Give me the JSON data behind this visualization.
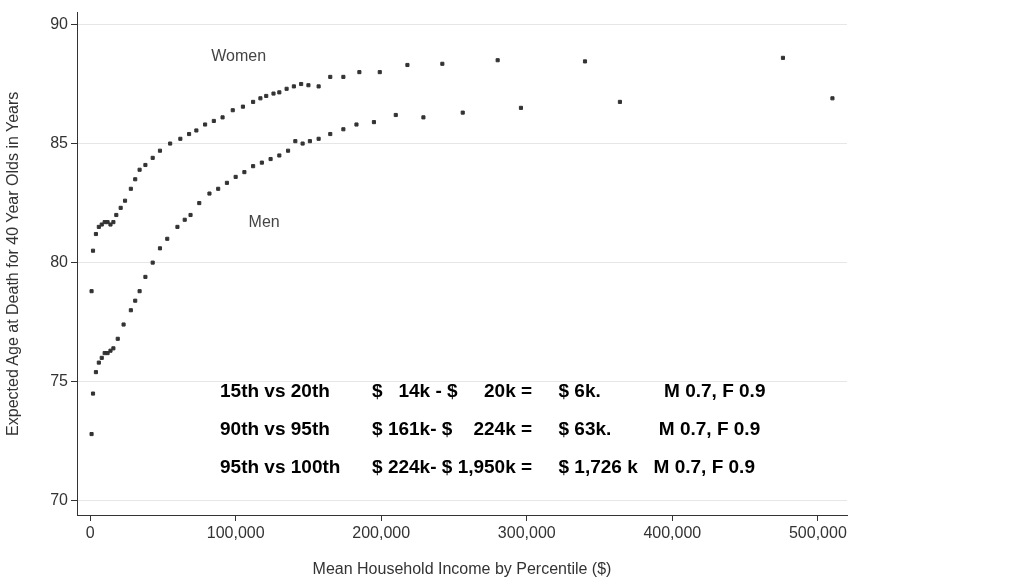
{
  "chart_data": {
    "type": "scatter",
    "xlabel": "Mean Household Income by Percentile ($)",
    "ylabel": "Expected Age at Death for 40 Year Olds in Years",
    "xlim": [
      -9000,
      520000
    ],
    "ylim": [
      69.4,
      90.5
    ],
    "xticks": [
      0,
      {
        "value": 100000,
        "label": "100,000"
      },
      {
        "value": 200000,
        "label": "200,000"
      },
      {
        "value": 300000,
        "label": "300,000"
      },
      {
        "value": 400000,
        "label": "400,000"
      },
      {
        "value": 500000,
        "label": "500,000"
      }
    ],
    "yticks": [
      70,
      75,
      80,
      85,
      90
    ],
    "grid": "y",
    "legend": false,
    "marker": "square",
    "series": [
      {
        "name": "Women",
        "color": "#333333",
        "x": [
          1000,
          2000,
          4000,
          6000,
          8000,
          10000,
          12000,
          14000,
          16000,
          18000,
          21000,
          24000,
          28000,
          31000,
          34000,
          38000,
          43000,
          48000,
          55000,
          62000,
          68000,
          73000,
          79000,
          85000,
          91000,
          98000,
          105000,
          112000,
          117000,
          121000,
          126000,
          130000,
          135000,
          140000,
          145000,
          150000,
          157000,
          165000,
          174000,
          185000,
          199000,
          218000,
          242000,
          280000,
          340000,
          476000
        ],
        "values": [
          78.8,
          80.5,
          81.2,
          81.5,
          81.6,
          81.7,
          81.7,
          81.6,
          81.7,
          82.0,
          82.3,
          82.6,
          83.1,
          83.5,
          83.9,
          84.1,
          84.4,
          84.7,
          85.0,
          85.2,
          85.4,
          85.55,
          85.8,
          85.95,
          86.1,
          86.4,
          86.55,
          86.75,
          86.9,
          87.0,
          87.1,
          87.15,
          87.3,
          87.4,
          87.5,
          87.45,
          87.4,
          87.8,
          87.8,
          88.0,
          88.0,
          88.3,
          88.35,
          88.5,
          88.45,
          88.6
        ]
      },
      {
        "name": "Men",
        "color": "#333333",
        "x": [
          1000,
          2000,
          4000,
          6000,
          8000,
          10000,
          12000,
          14000,
          16000,
          19000,
          23000,
          28000,
          31000,
          34000,
          38000,
          43000,
          48000,
          53000,
          60000,
          65000,
          69000,
          75000,
          82000,
          88000,
          94000,
          100000,
          106000,
          112000,
          118000,
          124000,
          130000,
          136000,
          141000,
          146000,
          151000,
          157000,
          165000,
          174000,
          183000,
          195000,
          210000,
          229000,
          256000,
          296000,
          364000,
          510000
        ],
        "values": [
          72.8,
          74.5,
          75.4,
          75.8,
          76.0,
          76.2,
          76.2,
          76.3,
          76.4,
          76.8,
          77.4,
          78.0,
          78.4,
          78.8,
          79.4,
          80.0,
          80.6,
          81.0,
          81.5,
          81.8,
          82.0,
          82.5,
          82.9,
          83.1,
          83.35,
          83.6,
          83.8,
          84.05,
          84.2,
          84.35,
          84.5,
          84.7,
          85.1,
          85.0,
          85.1,
          85.2,
          85.4,
          85.6,
          85.8,
          85.9,
          86.2,
          86.1,
          86.3,
          86.5,
          86.75,
          86.9
        ]
      }
    ],
    "annotations": [
      "15th vs 20th        $   14k - $     20k =     $ 6k.            M 0.7, F 0.9",
      "90th vs 95th        $ 161k- $    224k =     $ 63k.         M 0.7, F 0.9",
      "95th vs 100th      $ 224k- $ 1,950k =     $ 1,726 k   M 0.7, F 0.9"
    ]
  }
}
